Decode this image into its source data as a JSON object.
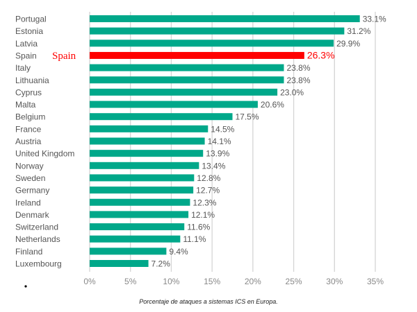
{
  "chart_data": {
    "type": "bar",
    "orientation": "horizontal",
    "title": "",
    "caption": "Porcentaje de ataques a sistemas ICS en Europa.",
    "categories": [
      "Portugal",
      "Estonia",
      "Latvia",
      "Spain",
      "Italy",
      "Lithuania",
      "Cyprus",
      "Malta",
      "Belgium",
      "France",
      "Austria",
      "United Kingdom",
      "Norway",
      "Sweden",
      "Germany",
      "Ireland",
      "Denmark",
      "Switzerland",
      "Netherlands",
      "Finland",
      "Luxembourg"
    ],
    "values": [
      33.1,
      31.2,
      29.9,
      26.3,
      23.8,
      23.8,
      23.0,
      20.6,
      17.5,
      14.5,
      14.1,
      13.9,
      13.4,
      12.8,
      12.7,
      12.3,
      12.1,
      11.6,
      11.1,
      9.4,
      7.2
    ],
    "value_labels": [
      "33.1%",
      "31.2%",
      "29.9%",
      "26.3%",
      "23.8%",
      "23.8%",
      "23.0%",
      "20.6%",
      "17.5%",
      "14.5%",
      "14.1%",
      "13.9%",
      "13.4%",
      "12.8%",
      "12.7%",
      "12.3%",
      "12.1%",
      "11.6%",
      "11.1%",
      "9.4%",
      "7.2%"
    ],
    "highlight": {
      "category": "Spain",
      "annotation": "Spain",
      "color": "#ff0000"
    },
    "bar_color": "#00a88a",
    "xlim": [
      0,
      35
    ],
    "xticks": [
      0,
      5,
      10,
      15,
      20,
      25,
      30,
      35
    ],
    "xtick_labels": [
      "0%",
      "5%",
      "10%",
      "15%",
      "20%",
      "25%",
      "30%",
      "35%"
    ],
    "grid": "vertical",
    "xlabel": "",
    "ylabel": ""
  }
}
